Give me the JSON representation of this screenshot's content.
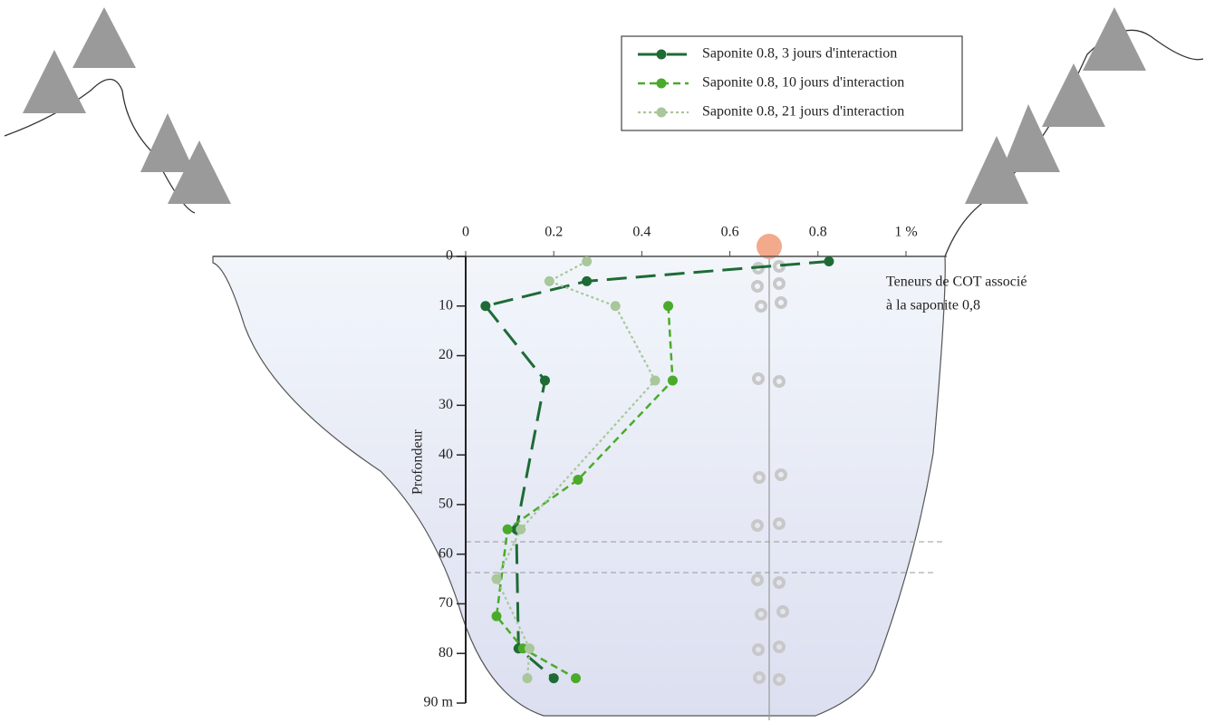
{
  "chart_data": {
    "type": "line",
    "xlabel": "Teneurs de COT associé à la saponite 0,8",
    "annotation": [
      "Teneurs de COT associé",
      "à la saponite 0,8"
    ],
    "ylabel": "Profondeur",
    "xlim": [
      0,
      1
    ],
    "xticks": [
      0,
      0.2,
      0.4,
      0.6,
      0.8,
      {
        "value": 1,
        "label": "1 %"
      }
    ],
    "ylim": [
      0,
      90
    ],
    "yticks": [
      0,
      10,
      20,
      30,
      40,
      50,
      60,
      70,
      80,
      {
        "value": 90,
        "label": "90 m"
      }
    ],
    "y_inverted": true,
    "legend": "upper right",
    "series": [
      {
        "name": "Saponite 0.8, 3 jours d'interaction",
        "color": "#1e6b35",
        "linestyle": "long-dash",
        "x": [
          0.825,
          0.275,
          0.045,
          0.18,
          0.115,
          0.12,
          0.2
        ],
        "values": [
          1,
          5,
          10,
          25,
          55,
          79,
          85
        ]
      },
      {
        "name": "Saponite 0.8, 10 jours d'interaction",
        "color": "#4aab2a",
        "linestyle": "dash",
        "x": [
          0.46,
          0.47,
          0.255,
          0.095,
          0.07,
          0.13,
          0.25
        ],
        "values": [
          10,
          25,
          45,
          55,
          72.5,
          79,
          85
        ]
      },
      {
        "name": "Saponite 0.8, 21 jours d'interaction",
        "color": "#a8c79a",
        "linestyle": "dot",
        "x": [
          0.275,
          0.19,
          0.34,
          0.43,
          0.125,
          0.07,
          0.145,
          0.14
        ],
        "values": [
          1,
          5,
          10,
          25,
          55,
          65,
          79,
          85
        ]
      }
    ]
  }
}
